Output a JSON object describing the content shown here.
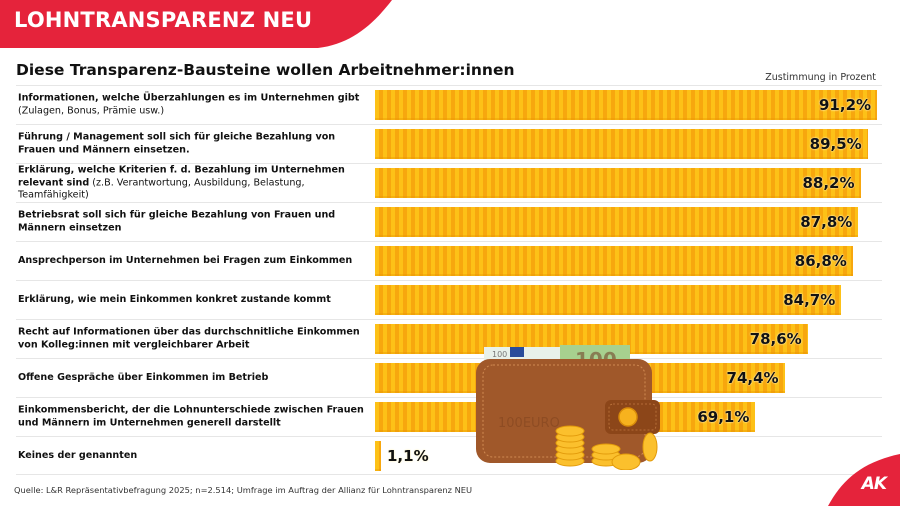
{
  "header": {
    "title": "LOHNTRANSPARENZ NEU",
    "brand_color": "#e5233b"
  },
  "subtitle": "Diese Transparenz-Bausteine wollen Arbeitnehmer:innen",
  "axis_label": "Zustimmung in Prozent",
  "rows": [
    {
      "label_bold": "Informationen, welche Überzahlungen es im Unternehmen gibt",
      "label_normal": "(Zulagen, Bonus, Prämie usw.)",
      "value": 91.2,
      "value_label": "91,2%"
    },
    {
      "label_bold": "Führung / Management soll sich für gleiche Bezahlung von Frauen und Männern einsetzen.",
      "label_normal": "",
      "value": 89.5,
      "value_label": "89,5%"
    },
    {
      "label_bold": "Erklärung, welche Kriterien f. d. Bezahlung im Unternehmen relevant sind",
      "label_normal": "(z.B. Verantwortung, Ausbildung, Belastung, Teamfähigkeit)",
      "value": 88.2,
      "value_label": "88,2%"
    },
    {
      "label_bold": "Betriebsrat soll sich für gleiche Bezahlung von Frauen und Männern einsetzen",
      "label_normal": "",
      "value": 87.8,
      "value_label": "87,8%"
    },
    {
      "label_bold": "Ansprechperson im Unternehmen bei Fragen zum Einkommen",
      "label_normal": "",
      "value": 86.8,
      "value_label": "86,8%"
    },
    {
      "label_bold": "Erklärung, wie mein Einkommen konkret zustande kommt",
      "label_normal": "",
      "value": 84.7,
      "value_label": "84,7%"
    },
    {
      "label_bold": "Recht auf Informationen über das durchschnitliche Einkommen von Kolleg:innen mit vergleichbarer Arbeit",
      "label_normal": "",
      "value": 78.6,
      "value_label": "78,6%"
    },
    {
      "label_bold": "Offene Gespräche über Einkommen im Betrieb",
      "label_normal": "",
      "value": 74.4,
      "value_label": "74,4%"
    },
    {
      "label_bold": "Einkommensbericht, der die Lohnunterschiede zwischen Frauen und Männern im Unternehmen generell darstellt",
      "label_normal": "",
      "value": 69.1,
      "value_label": "69,1%"
    },
    {
      "label_bold": "Keines der genannten",
      "label_normal": "",
      "value": 1.1,
      "value_label": "1,1%"
    }
  ],
  "footer": "Quelle: L&R Repräsentativbefragung 2025; n=2.514; Umfrage im Auftrag der Allianz für Lohntransparenz NEU",
  "logo_text": "AK",
  "colors": {
    "bar_light": "#fdc117",
    "bar_dark": "#f7a70e",
    "accent_red": "#e5233b"
  },
  "chart_data": {
    "type": "bar",
    "orientation": "horizontal",
    "title": "Diese Transparenz-Bausteine wollen Arbeitnehmer:innen",
    "xlabel": "Zustimmung in Prozent",
    "ylabel": "",
    "categories": [
      "Informationen, welche Überzahlungen es im Unternehmen gibt (Zulagen, Bonus, Prämie usw.)",
      "Führung / Management soll sich für gleiche Bezahlung von Frauen und Männern einsetzen.",
      "Erklärung, welche Kriterien f. d. Bezahlung im Unternehmen relevant sind (z.B. Verantwortung, Ausbildung, Belastung, Teamfähigkeit)",
      "Betriebsrat soll sich für gleiche Bezahlung von Frauen und Männern einsetzen",
      "Ansprechperson im Unternehmen bei Fragen zum Einkommen",
      "Erklärung, wie mein Einkommen konkret zustande kommt",
      "Recht auf Informationen über das durchschnitliche Einkommen von Kolleg:innen mit vergleichbarer Arbeit",
      "Offene Gespräche über Einkommen im Betrieb",
      "Einkommensbericht, der die Lohnunterschiede zwischen Frauen und Männern im Unternehmen generell darstellt",
      "Keines der genannten"
    ],
    "values": [
      91.2,
      89.5,
      88.2,
      87.8,
      86.8,
      84.7,
      78.6,
      74.4,
      69.1,
      1.1
    ],
    "unit": "%",
    "xlim": [
      0,
      100
    ],
    "grid": false,
    "legend": null,
    "source": "Quelle: L&R Repräsentativbefragung 2025; n=2.514; Umfrage im Auftrag der Allianz für Lohntransparenz NEU"
  }
}
